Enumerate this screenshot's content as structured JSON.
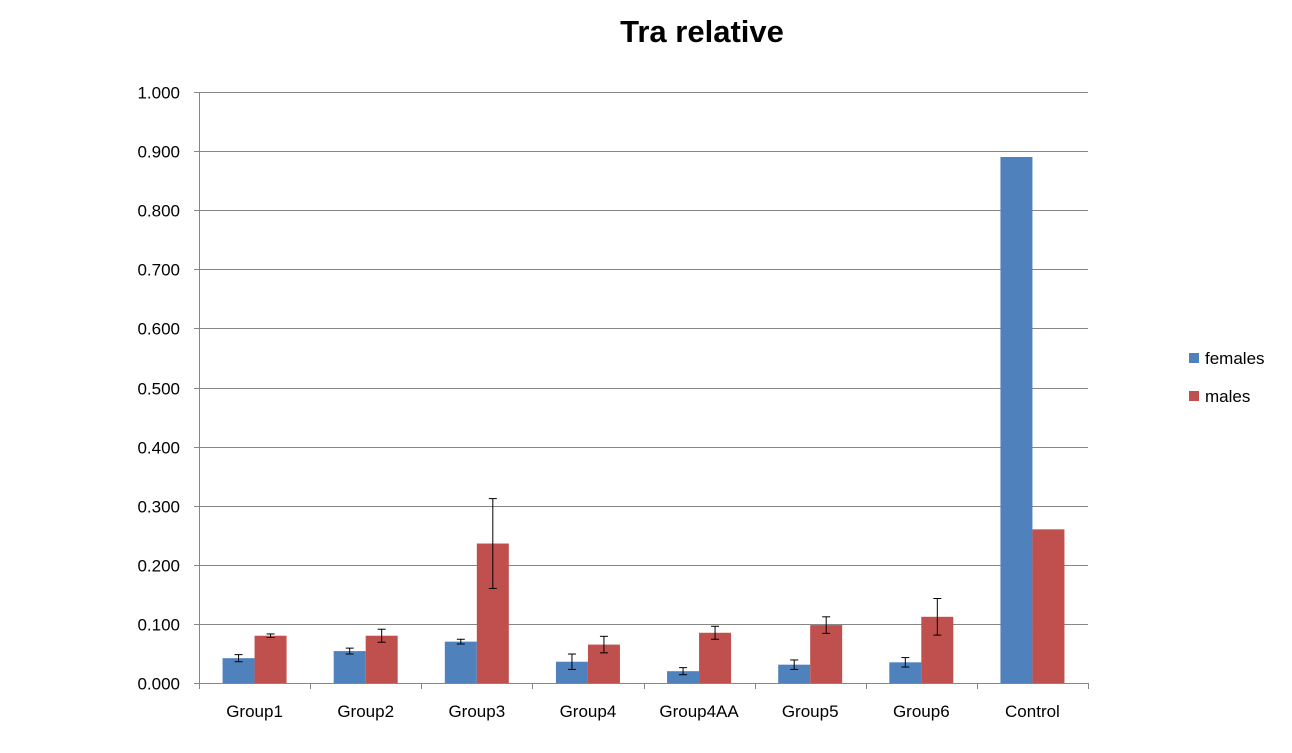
{
  "chart_data": {
    "type": "bar",
    "title": "Tra relative",
    "xlabel": "",
    "ylabel": "",
    "ylim": [
      0,
      1.0
    ],
    "yticks": [
      0,
      0.1,
      0.2,
      0.3,
      0.4,
      0.5,
      0.6,
      0.7,
      0.8,
      0.9,
      1.0
    ],
    "ytick_labels": [
      "0.000",
      "0.100",
      "0.200",
      "0.300",
      "0.400",
      "0.500",
      "0.600",
      "0.700",
      "0.800",
      "0.900",
      "1.000"
    ],
    "grid": true,
    "legend_position": "right",
    "categories": [
      "Group1",
      "Group2",
      "Group3",
      "Group4",
      "Group4AA",
      "Group5",
      "Group6",
      "Control"
    ],
    "series": [
      {
        "name": "females",
        "color": "#4F81BD",
        "values": [
          0.042,
          0.054,
          0.07,
          0.036,
          0.02,
          0.031,
          0.035,
          0.89
        ],
        "errors": [
          0.006,
          0.005,
          0.004,
          0.013,
          0.006,
          0.008,
          0.008,
          null
        ]
      },
      {
        "name": "males",
        "color": "#C0504D",
        "values": [
          0.08,
          0.08,
          0.236,
          0.065,
          0.085,
          0.098,
          0.112,
          0.26
        ],
        "errors": [
          0.003,
          0.011,
          0.076,
          0.014,
          0.011,
          0.014,
          0.031,
          null
        ]
      }
    ],
    "gridline_color": "#868686",
    "axis_color": "#868686"
  }
}
